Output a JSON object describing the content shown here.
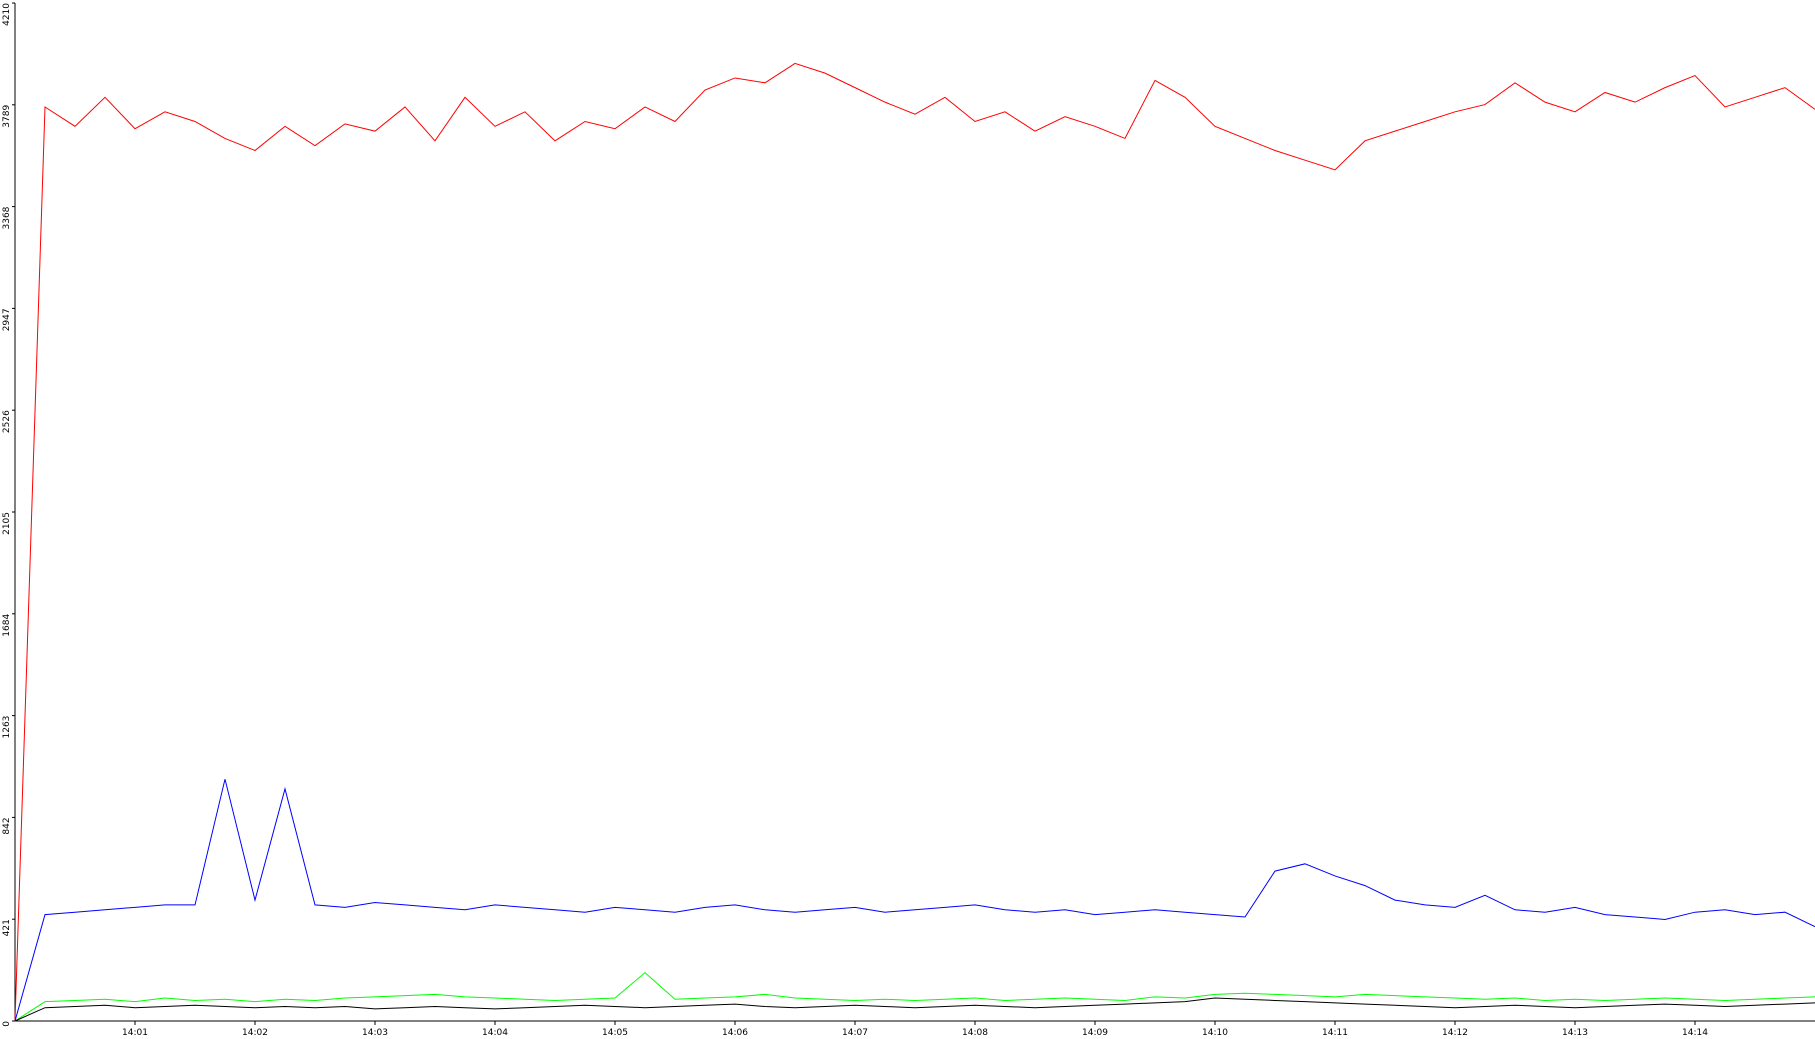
{
  "chart_data": {
    "type": "line",
    "xlim": [
      0,
      15
    ],
    "xticks": [
      {
        "value": 1,
        "label": "14:01"
      },
      {
        "value": 2,
        "label": "14:02"
      },
      {
        "value": 3,
        "label": "14:03"
      },
      {
        "value": 4,
        "label": "14:04"
      },
      {
        "value": 5,
        "label": "14:05"
      },
      {
        "value": 6,
        "label": "14:06"
      },
      {
        "value": 7,
        "label": "14:07"
      },
      {
        "value": 8,
        "label": "14:08"
      },
      {
        "value": 9,
        "label": "14:09"
      },
      {
        "value": 10,
        "label": "14:10"
      },
      {
        "value": 11,
        "label": "14:11"
      },
      {
        "value": 12,
        "label": "14:12"
      },
      {
        "value": 13,
        "label": "14:13"
      },
      {
        "value": 14,
        "label": "14:14"
      }
    ],
    "ylim": [
      0,
      4210
    ],
    "yticks": [
      0,
      421,
      842,
      1263,
      1684,
      2105,
      2526,
      2947,
      3368,
      3789,
      4210
    ],
    "grid": false,
    "x": [
      0,
      0.25,
      0.5,
      0.75,
      1,
      1.25,
      1.5,
      1.75,
      2,
      2.25,
      2.5,
      2.75,
      3,
      3.25,
      3.5,
      3.75,
      4,
      4.25,
      4.5,
      4.75,
      5,
      5.25,
      5.5,
      5.75,
      6,
      6.25,
      6.5,
      6.75,
      7,
      7.25,
      7.5,
      7.75,
      8,
      8.25,
      8.5,
      8.75,
      9,
      9.25,
      9.5,
      9.75,
      10,
      10.25,
      10.5,
      10.75,
      11,
      11.25,
      11.5,
      11.75,
      12,
      12.25,
      12.5,
      12.75,
      13,
      13.25,
      13.5,
      13.75,
      14,
      14.25,
      14.5,
      14.75,
      15
    ],
    "series": [
      {
        "color": "#ff0000",
        "values": [
          0,
          3780,
          3700,
          3820,
          3690,
          3760,
          3720,
          3650,
          3600,
          3700,
          3620,
          3710,
          3680,
          3780,
          3640,
          3820,
          3700,
          3760,
          3640,
          3720,
          3690,
          3780,
          3720,
          3850,
          3900,
          3880,
          3960,
          3920,
          3860,
          3800,
          3750,
          3820,
          3720,
          3760,
          3680,
          3740,
          3700,
          3650,
          3890,
          3820,
          3700,
          3650,
          3600,
          3560,
          3520,
          3640,
          3680,
          3720,
          3760,
          3790,
          3880,
          3800,
          3760,
          3840,
          3800,
          3860,
          3910,
          3780,
          3820,
          3860,
          3770
        ]
      },
      {
        "color": "#0000ff",
        "values": [
          0,
          440,
          450,
          460,
          470,
          480,
          480,
          1000,
          500,
          960,
          480,
          470,
          490,
          480,
          470,
          460,
          480,
          470,
          460,
          450,
          470,
          460,
          450,
          470,
          480,
          460,
          450,
          460,
          470,
          450,
          460,
          470,
          480,
          460,
          450,
          460,
          440,
          450,
          460,
          450,
          440,
          430,
          620,
          650,
          600,
          560,
          500,
          480,
          470,
          520,
          460,
          450,
          470,
          440,
          430,
          420,
          450,
          460,
          440,
          450,
          390
        ]
      },
      {
        "color": "#00ff00",
        "values": [
          0,
          80,
          85,
          90,
          80,
          95,
          85,
          90,
          80,
          90,
          85,
          95,
          100,
          105,
          110,
          100,
          95,
          90,
          85,
          90,
          95,
          200,
          90,
          95,
          100,
          110,
          95,
          90,
          85,
          90,
          85,
          90,
          95,
          85,
          90,
          95,
          90,
          85,
          100,
          95,
          110,
          115,
          110,
          105,
          100,
          110,
          105,
          100,
          95,
          90,
          95,
          85,
          90,
          85,
          90,
          95,
          90,
          85,
          90,
          95,
          100
        ]
      },
      {
        "color": "#000000",
        "values": [
          0,
          55,
          60,
          65,
          55,
          60,
          65,
          60,
          55,
          60,
          55,
          60,
          50,
          55,
          60,
          55,
          50,
          55,
          60,
          65,
          60,
          55,
          60,
          65,
          70,
          60,
          55,
          60,
          65,
          60,
          55,
          60,
          65,
          60,
          55,
          60,
          65,
          70,
          75,
          80,
          95,
          90,
          85,
          80,
          75,
          70,
          65,
          60,
          55,
          60,
          65,
          60,
          55,
          60,
          65,
          70,
          65,
          60,
          65,
          70,
          75
        ]
      }
    ]
  }
}
